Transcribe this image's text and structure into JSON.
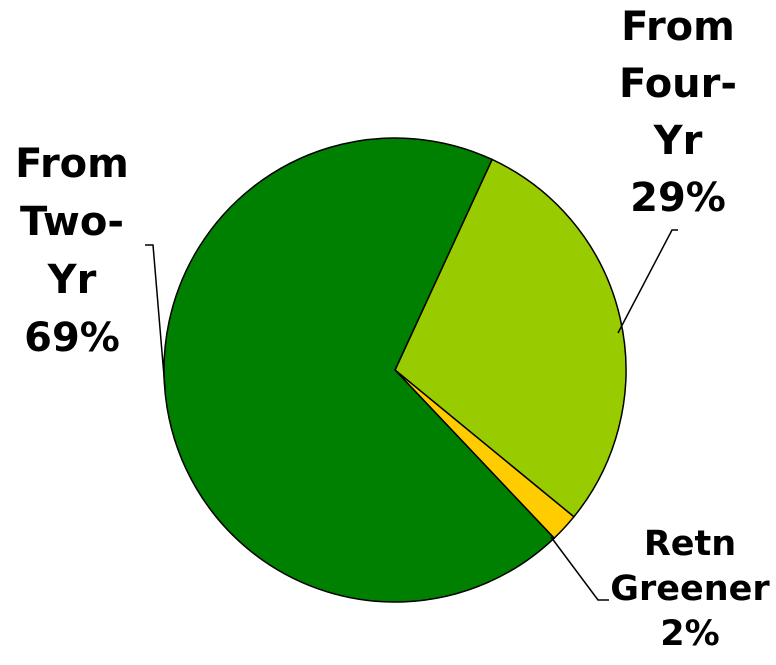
{
  "chart_data": {
    "type": "pie",
    "slices": [
      {
        "label": "From Four-Yr",
        "label_lines": [
          "From",
          "Four-",
          "Yr"
        ],
        "value": 29,
        "display": "29%",
        "color": "#99CC00"
      },
      {
        "label": "Retn Greener",
        "label_lines": [
          "Retn",
          "Greener"
        ],
        "value": 2,
        "display": "2%",
        "color": "#FFCC00"
      },
      {
        "label": "From Two-Yr",
        "label_lines": [
          "From",
          "Two-",
          "Yr"
        ],
        "value": 69,
        "display": "69%",
        "color": "#008000"
      }
    ],
    "legend": "none",
    "data_labels": "outside with leader lines"
  }
}
